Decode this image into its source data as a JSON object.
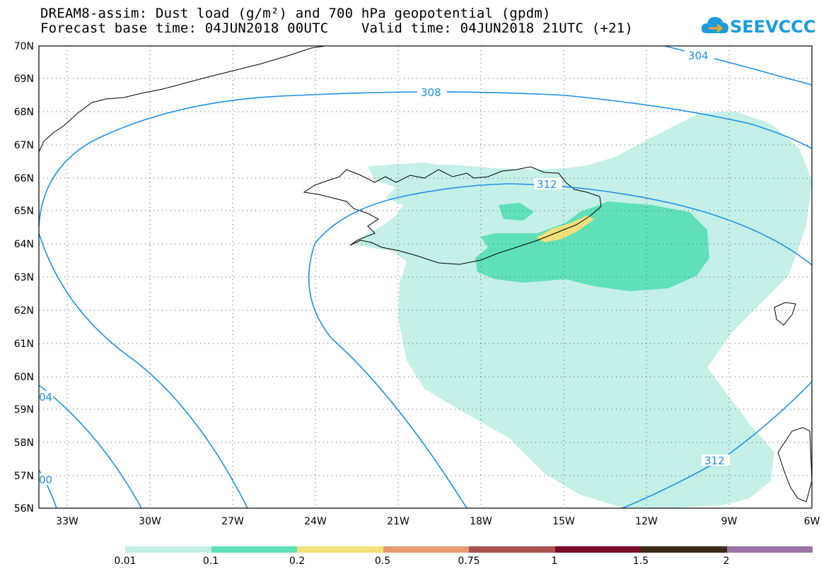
{
  "title": {
    "line1": "DREAM8-assim: Dust load (g/m²) and 700 hPa geopotential (gpdm)",
    "line2": "Forecast base time: 04JUN2018 00UTC    Valid time: 04JUN2018 21UTC (+21)"
  },
  "logo": {
    "text": "SEEVCCC",
    "icon": "cloud-logo-icon",
    "color": "#1a9be0"
  },
  "map": {
    "lat_labels": [
      "70N",
      "69N",
      "68N",
      "67N",
      "66N",
      "65N",
      "64N",
      "63N",
      "62N",
      "61N",
      "60N",
      "59N",
      "58N",
      "57N",
      "56N"
    ],
    "lon_labels": [
      "33W",
      "30W",
      "27W",
      "24W",
      "21W",
      "18W",
      "15W",
      "12W",
      "9W",
      "6W"
    ],
    "contour_labels": [
      "304",
      "308",
      "312",
      "312",
      "04",
      "00"
    ],
    "dust_colors": {
      "level1": "#c4f0e8",
      "level2": "#5fe0b8",
      "level3": "#f3e07a"
    },
    "contour_color": "#1e90e8"
  },
  "colorbar": {
    "labels": [
      "0.01",
      "0.1",
      "0.2",
      "0.5",
      "0.75",
      "1",
      "1.5",
      "2"
    ],
    "colors": [
      "#c4f0e8",
      "#5fe0b8",
      "#f3e07a",
      "#e59a74",
      "#a9514e",
      "#7b0a2c",
      "#3d2a17",
      "#9b73a8"
    ]
  }
}
